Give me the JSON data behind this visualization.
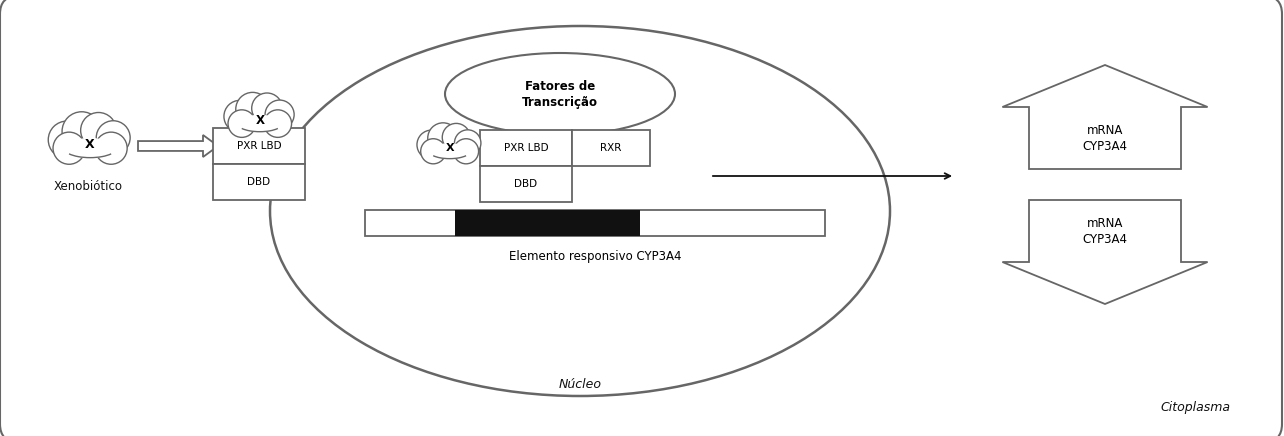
{
  "bg_color": "#ffffff",
  "border_color": "#666666",
  "text_color": "#222222",
  "figsize": [
    12.84,
    4.36
  ],
  "dpi": 100,
  "citoplasma_label": "Citoplasma",
  "nucleo_label": "Núcleo",
  "xenobiotico_label": "Xenobiótico",
  "pxr_lbd_label": "PXR LBD",
  "dbd_label": "DBD",
  "rxr_label": "RXR",
  "fatores_label": "Fatores de\nTranscrição",
  "elemento_label": "Elemento responsivo CYP3A4",
  "mrna_label": "mRNA\nCYP3A4",
  "x_label": "X"
}
